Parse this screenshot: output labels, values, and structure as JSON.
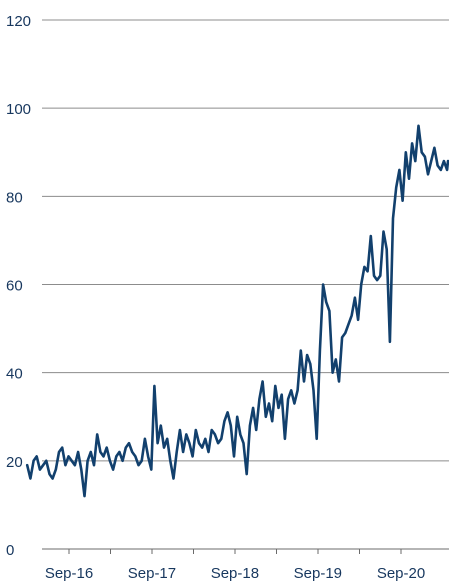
{
  "chart_data": {
    "type": "line",
    "title": "",
    "xlabel": "",
    "ylabel": "",
    "ylim": [
      0,
      120
    ],
    "y_ticks": [
      0,
      20,
      40,
      60,
      80,
      100,
      120
    ],
    "y_tick_labels": [
      "0",
      "20",
      "40",
      "60",
      "80",
      "100",
      "120"
    ],
    "x_tick_labels": [
      "Sep-16",
      "Sep-17",
      "Sep-18",
      "Sep-19",
      "Sep-20"
    ],
    "x_tick_label_dates": [
      "2016-09",
      "2017-09",
      "2018-09",
      "2019-09",
      "2020-09"
    ],
    "grid": "horizontal",
    "legend": "none",
    "line_color": "#12406d",
    "series": [
      {
        "x": [
          "2016-03-15",
          "2016-03-29",
          "2016-04-12",
          "2016-04-26",
          "2016-05-10",
          "2016-05-24",
          "2016-06-07",
          "2016-06-21",
          "2016-07-05",
          "2016-07-19",
          "2016-08-02",
          "2016-08-16",
          "2016-08-30",
          "2016-09-13",
          "2016-09-27",
          "2016-10-11",
          "2016-10-25",
          "2016-11-08",
          "2016-11-22",
          "2016-12-06",
          "2016-12-20",
          "2017-01-03",
          "2017-01-17",
          "2017-01-31",
          "2017-02-14",
          "2017-02-28",
          "2017-03-14",
          "2017-03-28",
          "2017-04-11",
          "2017-04-25",
          "2017-05-09",
          "2017-05-23",
          "2017-06-06",
          "2017-06-20",
          "2017-07-04",
          "2017-07-18",
          "2017-08-01",
          "2017-08-15",
          "2017-08-29",
          "2017-09-12",
          "2017-09-26",
          "2017-10-10",
          "2017-10-24",
          "2017-11-07",
          "2017-11-21",
          "2017-12-05",
          "2017-12-19",
          "2018-01-02",
          "2018-01-16",
          "2018-01-30",
          "2018-02-13",
          "2018-02-27",
          "2018-03-13",
          "2018-03-27",
          "2018-04-10",
          "2018-04-24",
          "2018-05-08",
          "2018-05-22",
          "2018-06-05",
          "2018-06-19",
          "2018-07-03",
          "2018-07-17",
          "2018-07-31",
          "2018-08-14",
          "2018-08-28",
          "2018-09-11",
          "2018-09-25",
          "2018-10-09",
          "2018-10-23",
          "2018-11-06",
          "2018-11-20",
          "2018-12-04",
          "2018-12-18",
          "2019-01-01",
          "2019-01-15",
          "2019-01-29",
          "2019-02-12",
          "2019-02-26",
          "2019-03-12",
          "2019-03-26",
          "2019-04-09",
          "2019-04-23",
          "2019-05-07",
          "2019-05-21",
          "2019-06-04",
          "2019-06-18",
          "2019-07-02",
          "2019-07-16",
          "2019-07-30",
          "2019-08-13",
          "2019-08-27",
          "2019-09-10",
          "2019-09-24",
          "2019-10-08",
          "2019-10-22",
          "2019-11-05",
          "2019-11-19",
          "2019-12-03",
          "2019-12-17",
          "2019-12-31",
          "2020-01-14",
          "2020-01-28",
          "2020-02-11",
          "2020-02-25",
          "2020-03-10",
          "2020-03-24",
          "2020-04-07",
          "2020-04-21",
          "2020-05-05",
          "2020-05-19",
          "2020-06-02",
          "2020-06-16",
          "2020-06-30",
          "2020-07-14",
          "2020-07-28",
          "2020-08-11",
          "2020-08-25",
          "2020-09-08",
          "2020-09-22",
          "2020-10-06",
          "2020-10-20",
          "2020-11-03",
          "2020-11-17",
          "2020-12-01",
          "2020-12-15",
          "2020-12-29",
          "2021-01-12",
          "2021-01-26",
          "2021-02-09",
          "2021-02-23",
          "2021-03-09",
          "2021-03-23",
          "2021-04-06",
          "2021-04-20"
        ],
        "values": [
          19,
          16,
          20,
          21,
          18,
          19,
          20,
          17,
          16,
          18,
          22,
          23,
          19,
          21,
          20,
          19,
          22,
          18,
          12,
          20,
          22,
          19,
          26,
          22,
          21,
          23,
          20,
          18,
          21,
          22,
          20,
          23,
          24,
          22,
          21,
          19,
          20,
          25,
          21,
          18,
          37,
          24,
          28,
          23,
          25,
          20,
          16,
          22,
          27,
          22,
          26,
          24,
          21,
          27,
          24,
          23,
          25,
          22,
          27,
          26,
          24,
          25,
          29,
          31,
          28,
          21,
          30,
          26,
          24,
          17,
          28,
          32,
          27,
          34,
          38,
          30,
          33,
          29,
          37,
          32,
          35,
          25,
          34,
          36,
          33,
          36,
          45,
          38,
          44,
          42,
          36,
          25,
          45,
          60,
          56,
          54,
          40,
          43,
          38,
          48,
          49,
          51,
          53,
          57,
          52,
          60,
          64,
          63,
          71,
          62,
          61,
          62,
          72,
          68,
          47,
          75,
          82,
          86,
          79,
          90,
          84,
          92,
          88,
          96,
          90,
          89,
          85,
          88,
          91,
          87,
          86,
          88,
          86,
          88
        ]
      }
    ]
  }
}
